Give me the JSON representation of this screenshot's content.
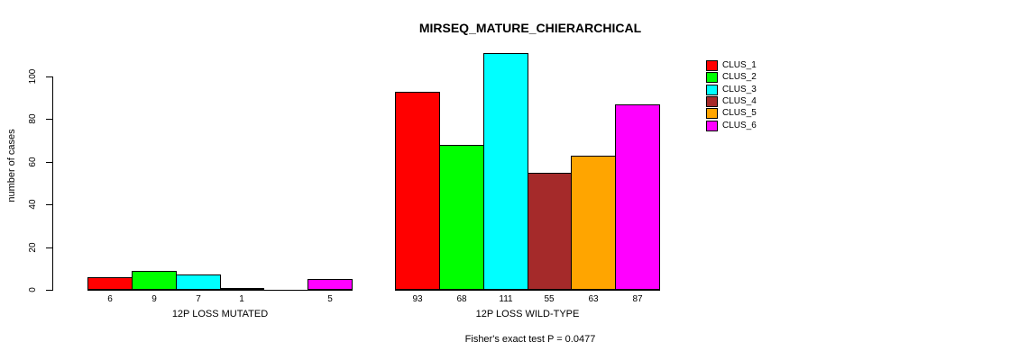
{
  "title": "MIRSEQ_MATURE_CHIERARCHICAL",
  "y_axis_label": "number of cases",
  "footer_note": "Fisher's exact test P = 0.0477",
  "legend": {
    "position": "right",
    "items": [
      {
        "label": "CLUS_1",
        "color": "#FF0000"
      },
      {
        "label": "CLUS_2",
        "color": "#00FF00"
      },
      {
        "label": "CLUS_3",
        "color": "#00FFFF"
      },
      {
        "label": "CLUS_4",
        "color": "#A52A2A"
      },
      {
        "label": "CLUS_5",
        "color": "#FFA500"
      },
      {
        "label": "CLUS_6",
        "color": "#FF00FF"
      }
    ]
  },
  "chart_data": {
    "type": "bar",
    "title": "MIRSEQ_MATURE_CHIERARCHICAL",
    "xlabel": "",
    "ylabel": "number of cases",
    "yticks": [
      0,
      20,
      40,
      60,
      80,
      100
    ],
    "ylim": [
      0,
      111
    ],
    "grid": false,
    "legend_position": "right",
    "bar_value_labels_shown": true,
    "zero_value_labels_hidden": true,
    "categories": [
      "12P LOSS MUTATED",
      "12P LOSS WILD-TYPE"
    ],
    "series": [
      {
        "name": "CLUS_1",
        "color": "#FF0000",
        "values": [
          6,
          93
        ]
      },
      {
        "name": "CLUS_2",
        "color": "#00FF00",
        "values": [
          9,
          68
        ]
      },
      {
        "name": "CLUS_3",
        "color": "#00FFFF",
        "values": [
          7,
          111
        ]
      },
      {
        "name": "CLUS_4",
        "color": "#A52A2A",
        "values": [
          1,
          55
        ]
      },
      {
        "name": "CLUS_5",
        "color": "#FFA500",
        "values": [
          0,
          63
        ]
      },
      {
        "name": "CLUS_6",
        "color": "#FF00FF",
        "values": [
          5,
          87
        ]
      }
    ],
    "annotation": "Fisher's exact test P = 0.0477"
  }
}
